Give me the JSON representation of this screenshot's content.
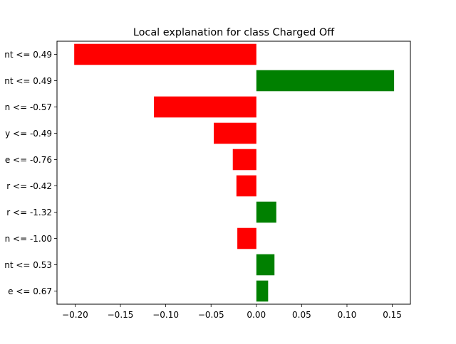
{
  "chart_data": {
    "type": "bar",
    "orientation": "horizontal",
    "title": "Local explanation for class Charged Off",
    "xlabel": "",
    "ylabel": "",
    "xlim": [
      -0.22,
      0.17
    ],
    "xticks": [
      -0.2,
      -0.15,
      -0.1,
      -0.05,
      0.0,
      0.05,
      0.1,
      0.15
    ],
    "xtick_labels": [
      "−0.20",
      "−0.15",
      "−0.10",
      "−0.05",
      "0.00",
      "0.05",
      "0.10",
      "0.15"
    ],
    "categories": [
      "nt <= 0.49",
      "nt <= 0.49",
      "n <= -0.57",
      "y <= -0.49",
      "e <= -0.76",
      "r <= -0.42",
      "r <= -1.32",
      "n <= -1.00",
      "nt <= 0.53",
      "e <= 0.67"
    ],
    "values": [
      -0.201,
      0.152,
      -0.113,
      -0.047,
      -0.026,
      -0.022,
      0.022,
      -0.021,
      0.02,
      0.013
    ],
    "colors": {
      "negative": "#ff0000",
      "positive": "#008000"
    },
    "grid": false
  }
}
